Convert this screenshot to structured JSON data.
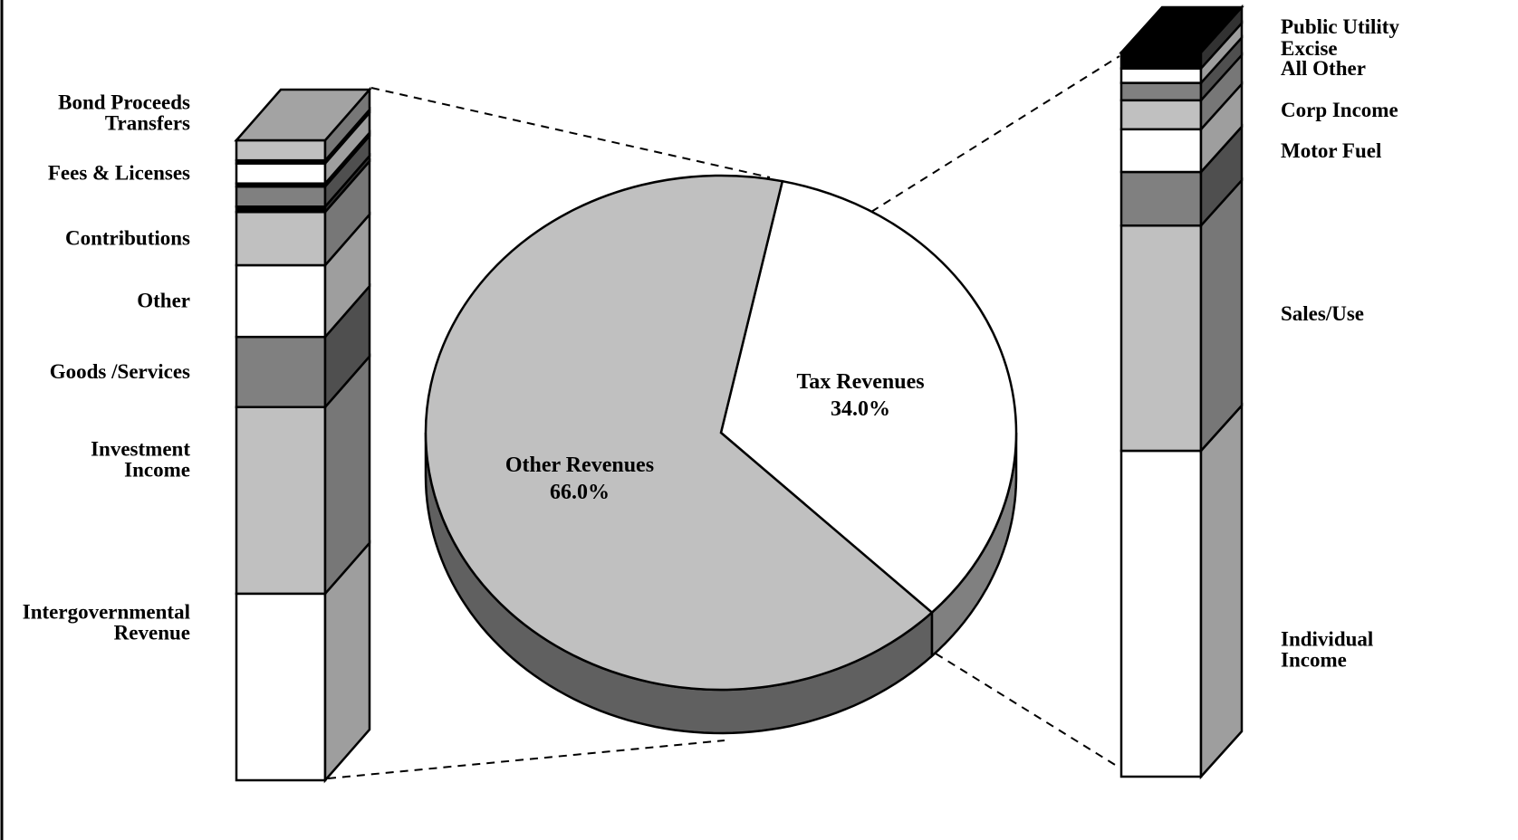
{
  "chart_data": {
    "type": "pie",
    "pie": {
      "slices": [
        {
          "label": "Tax Revenues",
          "value_label": "34.0%",
          "value": 34.0,
          "color": "#ffffff"
        },
        {
          "label": "Other Revenues",
          "value_label": "66.0%",
          "value": 66.0,
          "color": "#c0c0c0"
        }
      ]
    },
    "left_bar": {
      "breakdown_of": "Other Revenues",
      "segments": [
        {
          "label": "Intergovernmental\nRevenue",
          "share": 24.2,
          "color": "#ffffff"
        },
        {
          "label": "Investment\nIncome",
          "share": 24.2,
          "color": "#c0c0c0"
        },
        {
          "label": "Goods /Services",
          "share": 9.1,
          "color": "#808080"
        },
        {
          "label": "Other",
          "share": 9.3,
          "color": "#ffffff"
        },
        {
          "label": "Contributions",
          "share": 6.9,
          "color": "#c0c0c0"
        },
        {
          "label": "",
          "share": 0.7,
          "color": "#000000"
        },
        {
          "label": "",
          "share": 2.6,
          "color": "#808080"
        },
        {
          "label": "",
          "share": 0.4,
          "color": "#000000"
        },
        {
          "label": "Fees & Licenses",
          "share": 2.6,
          "color": "#ffffff"
        },
        {
          "label": "Transfers",
          "share": 0.4,
          "color": "#000000"
        },
        {
          "label": "Bond Proceeds",
          "share": 2.6,
          "color": "#c0c0c0"
        }
      ]
    },
    "right_bar": {
      "breakdown_of": "Tax Revenues",
      "segments": [
        {
          "label": "Individual\nIncome",
          "share": 45.0,
          "color": "#ffffff"
        },
        {
          "label": "Sales/Use",
          "share": 31.1,
          "color": "#c0c0c0"
        },
        {
          "label": "Motor Fuel",
          "share": 7.4,
          "color": "#808080"
        },
        {
          "label": "Corp Income",
          "share": 5.9,
          "color": "#ffffff"
        },
        {
          "label": "",
          "share": 4.0,
          "color": "#c0c0c0"
        },
        {
          "label": "All Other",
          "share": 2.4,
          "color": "#808080"
        },
        {
          "label": "Excise",
          "share": 2.0,
          "color": "#ffffff"
        },
        {
          "label": "Public Utility",
          "share": 2.2,
          "color": "#000000"
        }
      ]
    },
    "legend": "none",
    "grid": false
  }
}
